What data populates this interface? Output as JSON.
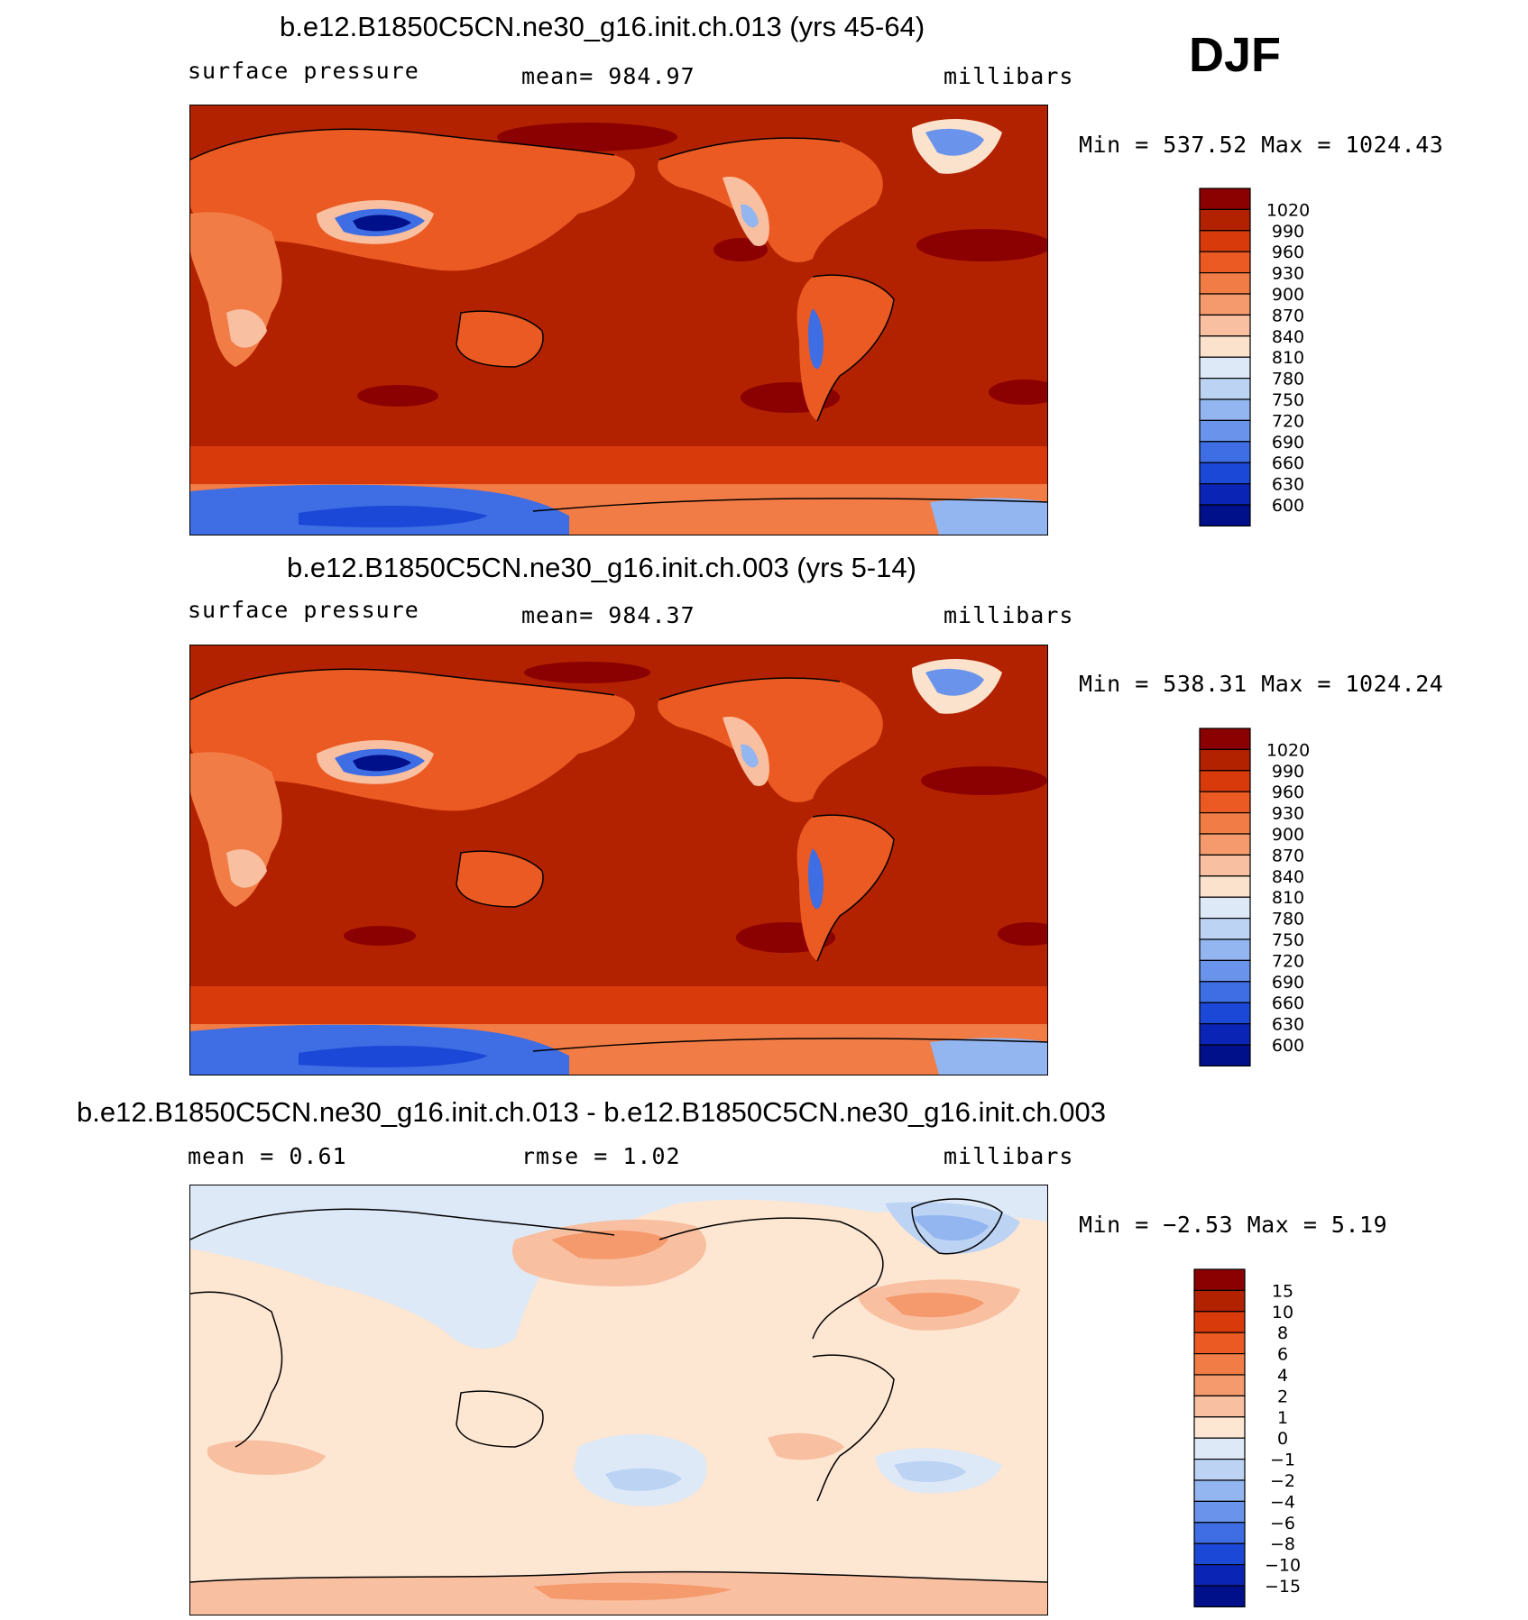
{
  "season": "DJF",
  "panels": [
    {
      "title": "b.e12.B1850C5CN.ne30_g16.init.ch.013 (yrs 45-64)",
      "left_label": "surface pressure",
      "center_label": "mean=  984.97",
      "right_label": "millibars",
      "minmax": "Min  =  537.52  Max  =  1024.43",
      "legend_levels": [
        "1020",
        "990",
        "960",
        "930",
        "900",
        "870",
        "840",
        "810",
        "780",
        "750",
        "720",
        "690",
        "660",
        "630",
        "600"
      ]
    },
    {
      "title": "b.e12.B1850C5CN.ne30_g16.init.ch.003 (yrs 5-14)",
      "left_label": "surface pressure",
      "center_label": "mean=  984.37",
      "right_label": "millibars",
      "minmax": "Min  =  538.31  Max  =  1024.24",
      "legend_levels": [
        "1020",
        "990",
        "960",
        "930",
        "900",
        "870",
        "840",
        "810",
        "780",
        "750",
        "720",
        "690",
        "660",
        "630",
        "600"
      ]
    },
    {
      "title": "b.e12.B1850C5CN.ne30_g16.init.ch.013 - b.e12.B1850C5CN.ne30_g16.init.ch.003",
      "left_label": "mean  =     0.61",
      "center_label": "rmse  =     1.02",
      "right_label": "millibars",
      "minmax": "Min  =    −2.53  Max  =     5.19",
      "legend_levels": [
        "15",
        "10",
        "8",
        "6",
        "4",
        "2",
        "1",
        "0",
        "−1",
        "−2",
        "−4",
        "−6",
        "−8",
        "−10",
        "−15"
      ]
    }
  ],
  "colors": {
    "abs_scale": [
      "#8b0000",
      "#b22200",
      "#d93a0c",
      "#eb5a22",
      "#f27c45",
      "#f59a6c",
      "#f8bfa0",
      "#fbe2cc",
      "#dde9f7",
      "#bcd3f4",
      "#93b5f0",
      "#6a94eb",
      "#3e6de4",
      "#1b48d6",
      "#0a25b5",
      "#00108a"
    ],
    "diff_scale": [
      "#8b0000",
      "#b22200",
      "#d93a0c",
      "#eb5a22",
      "#f27c45",
      "#f59a6c",
      "#f8bfa0",
      "#fde6d2",
      "#dde9f7",
      "#bcd3f4",
      "#93b5f0",
      "#6a94eb",
      "#3e6de4",
      "#1b48d6",
      "#0a25b5",
      "#00108a"
    ],
    "ocean_abs": "#b22200",
    "ocean_diff": "#fde6d2"
  },
  "chart_data": [
    {
      "type": "heatmap",
      "title": "b.e12.B1850C5CN.ne30_g16.init.ch.013 (yrs 45-64)",
      "variable": "surface pressure",
      "units": "millibars",
      "mean": 984.97,
      "min": 537.52,
      "max": 1024.43,
      "contour_levels": [
        600,
        630,
        660,
        690,
        720,
        750,
        780,
        810,
        840,
        870,
        900,
        930,
        960,
        990,
        1020
      ]
    },
    {
      "type": "heatmap",
      "title": "b.e12.B1850C5CN.ne30_g16.init.ch.003 (yrs 5-14)",
      "variable": "surface pressure",
      "units": "millibars",
      "mean": 984.37,
      "min": 538.31,
      "max": 1024.24,
      "contour_levels": [
        600,
        630,
        660,
        690,
        720,
        750,
        780,
        810,
        840,
        870,
        900,
        930,
        960,
        990,
        1020
      ]
    },
    {
      "type": "heatmap",
      "title": "b.e12.B1850C5CN.ne30_g16.init.ch.013 - b.e12.B1850C5CN.ne30_g16.init.ch.003",
      "units": "millibars",
      "mean": 0.61,
      "rmse": 1.02,
      "min": -2.53,
      "max": 5.19,
      "contour_levels": [
        -15,
        -10,
        -8,
        -6,
        -4,
        -2,
        -1,
        0,
        1,
        2,
        4,
        6,
        8,
        10,
        15
      ]
    }
  ]
}
